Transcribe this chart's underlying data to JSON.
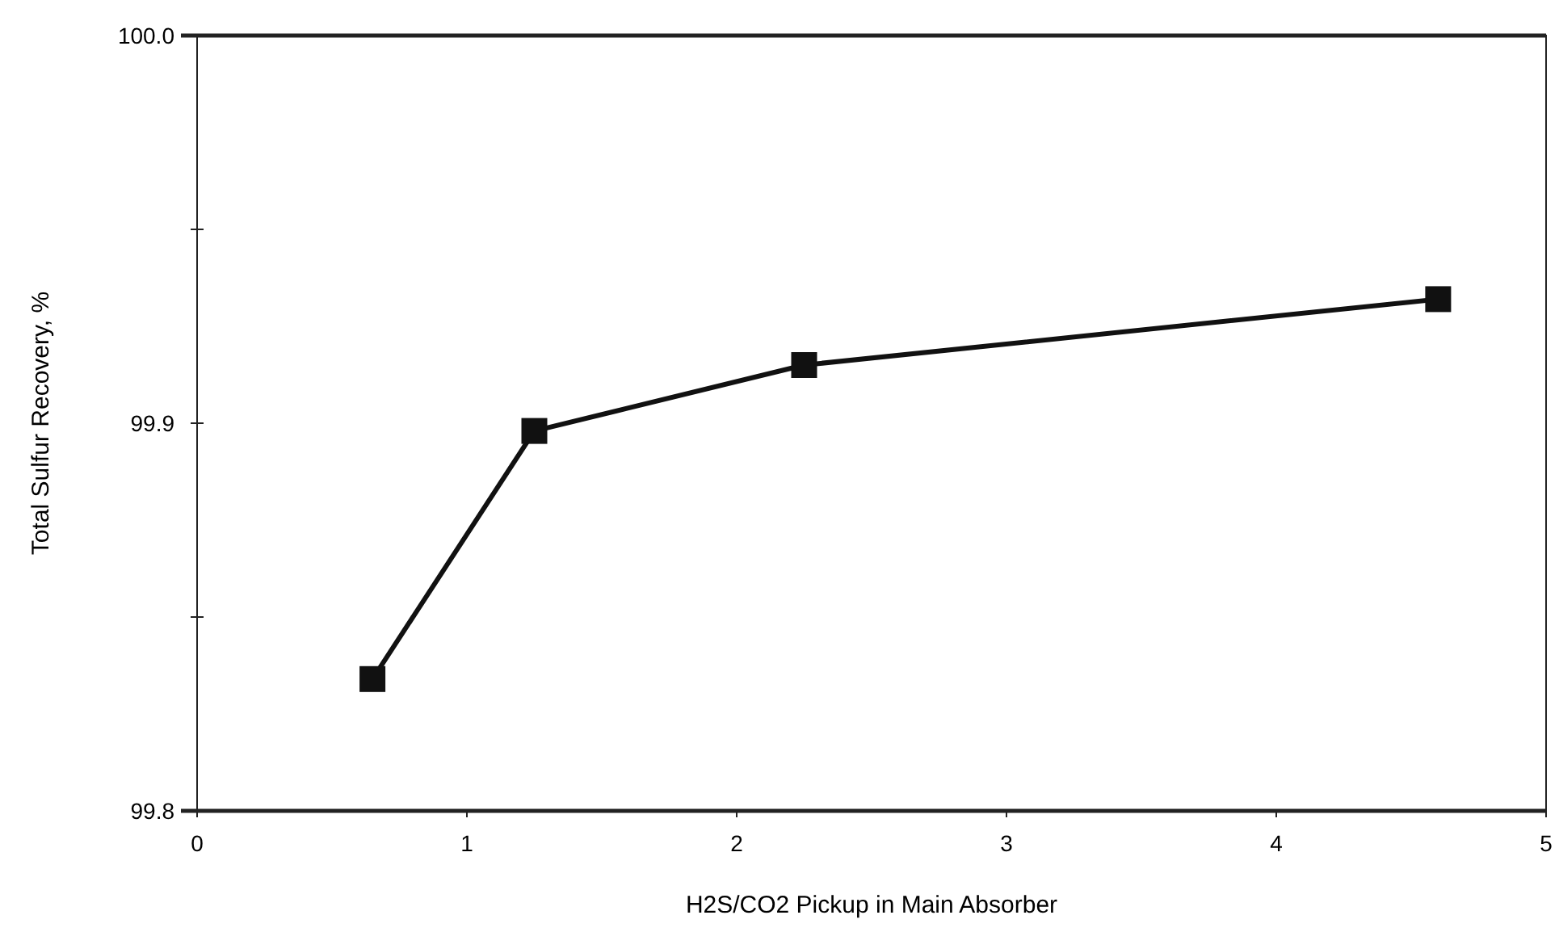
{
  "chart_data": {
    "type": "line",
    "xlabel": "H2S/CO2 Pickup in Main Absorber",
    "ylabel": "Total Sulfur Recovery, %",
    "x": [
      0.65,
      1.25,
      2.25,
      4.6
    ],
    "series": [
      {
        "color": "#111111",
        "values": [
          99.834,
          99.898,
          99.915,
          99.932
        ]
      }
    ],
    "xlim": [
      0,
      5
    ],
    "xticks": [
      0,
      1,
      2,
      3,
      4,
      5
    ],
    "ylim": [
      99.8,
      100
    ],
    "yticks": [
      {
        "value": 99.8,
        "label": "99.8"
      },
      {
        "value": 99.85,
        "label": null
      },
      99.9,
      {
        "value": 99.95,
        "label": null
      },
      {
        "value": 100,
        "label": "100.0"
      }
    ],
    "marker": "square",
    "line_style": "solid",
    "grid": false
  }
}
